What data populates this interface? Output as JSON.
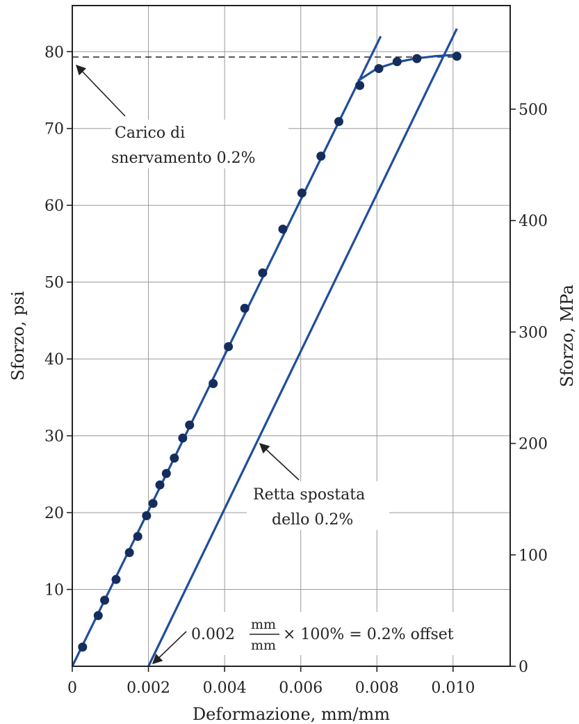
{
  "chart_data": {
    "type": "scatter",
    "xlabel": "Deformazione, mm/mm",
    "ylabel": "Sforzo, psi",
    "ylabel_right": "Sforzo, MPa",
    "xlim": [
      0,
      0.0115
    ],
    "ylim": [
      0,
      86
    ],
    "ylim_right": [
      0,
      593
    ],
    "grid": true,
    "x_ticks": [
      {
        "value": 0,
        "label": "0"
      },
      {
        "value": 0.002,
        "label": "0.002"
      },
      {
        "value": 0.004,
        "label": "0.004"
      },
      {
        "value": 0.006,
        "label": "0.006"
      },
      {
        "value": 0.008,
        "label": "0.008"
      },
      {
        "value": 0.01,
        "label": "0.010"
      }
    ],
    "y_ticks": [
      {
        "value": 10,
        "label": "10"
      },
      {
        "value": 20,
        "label": "20"
      },
      {
        "value": 30,
        "label": "30"
      },
      {
        "value": 40,
        "label": "40"
      },
      {
        "value": 50,
        "label": "50"
      },
      {
        "value": 60,
        "label": "60"
      },
      {
        "value": 70,
        "label": "70"
      },
      {
        "value": 80,
        "label": "80"
      }
    ],
    "y_right_ticks": [
      {
        "value": 0,
        "label": "0"
      },
      {
        "value": 100,
        "label": "100"
      },
      {
        "value": 200,
        "label": "200"
      },
      {
        "value": 300,
        "label": "300"
      },
      {
        "value": 400,
        "label": "400"
      },
      {
        "value": 500,
        "label": "500"
      }
    ],
    "points": {
      "x": [
        0.00027,
        0.00068,
        0.00085,
        0.00115,
        0.0015,
        0.00172,
        0.00195,
        0.00212,
        0.0023,
        0.00247,
        0.00268,
        0.0029,
        0.00308,
        0.0037,
        0.0041,
        0.00453,
        0.005,
        0.00553,
        0.00603,
        0.00653,
        0.007,
        0.00755,
        0.00805,
        0.00853,
        0.00905,
        0.0101
      ],
      "y": [
        2.5,
        6.6,
        8.6,
        11.3,
        14.8,
        16.9,
        19.6,
        21.2,
        23.6,
        25.1,
        27.1,
        29.7,
        31.4,
        36.8,
        41.6,
        46.6,
        51.2,
        56.9,
        61.6,
        66.4,
        70.9,
        75.6,
        77.8,
        78.7,
        79.1,
        79.4
      ]
    },
    "elastic_line": {
      "x": [
        0,
        0.0081
      ],
      "y": [
        0,
        82
      ]
    },
    "offset_line": {
      "x": [
        0.002,
        0.0101
      ],
      "y": [
        0,
        83
      ]
    },
    "fit_curve": {
      "x": [
        0.0075,
        0.008,
        0.0085,
        0.009,
        0.0095,
        0.0101
      ],
      "y": [
        76.2,
        77.8,
        78.6,
        79.1,
        79.4,
        79.6
      ]
    },
    "yield_level": 79.3,
    "annotations": {
      "yield_line1": "Carico di",
      "yield_line2": "snervamento 0.2%",
      "offset_line1": "Retta spostata",
      "offset_line2": "dello 0.2%",
      "formula_value": "0.002",
      "formula_num": "mm",
      "formula_den": "mm",
      "formula_rest": "× 100% = 0.2% offset"
    },
    "colors": {
      "series": "#1f4e9c",
      "axis": "#222222",
      "grid": "#9a9a9a"
    }
  }
}
